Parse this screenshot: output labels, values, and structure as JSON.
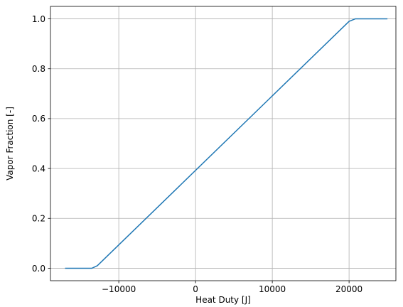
{
  "chart_data": {
    "type": "line",
    "title": "",
    "xlabel": "Heat Duty [J]",
    "ylabel": "Vapor Fraction [-]",
    "xlim": [
      -18900,
      26100
    ],
    "ylim": [
      -0.05,
      1.05
    ],
    "xticks": [
      -10000,
      0,
      10000,
      20000
    ],
    "xtick_labels": [
      "−10000",
      "0",
      "10000",
      "20000"
    ],
    "yticks": [
      0.0,
      0.2,
      0.4,
      0.6,
      0.8,
      1.0
    ],
    "ytick_labels": [
      "0.0",
      "0.2",
      "0.4",
      "0.6",
      "0.8",
      "1.0"
    ],
    "grid": true,
    "legend": false,
    "line_color": "#1f77b4",
    "series": [
      {
        "x": [
          -17000,
          -13500,
          -12800,
          20000,
          20800,
          25000
        ],
        "y": [
          0.0,
          0.0,
          0.01,
          0.99,
          1.0,
          1.0
        ]
      }
    ]
  }
}
